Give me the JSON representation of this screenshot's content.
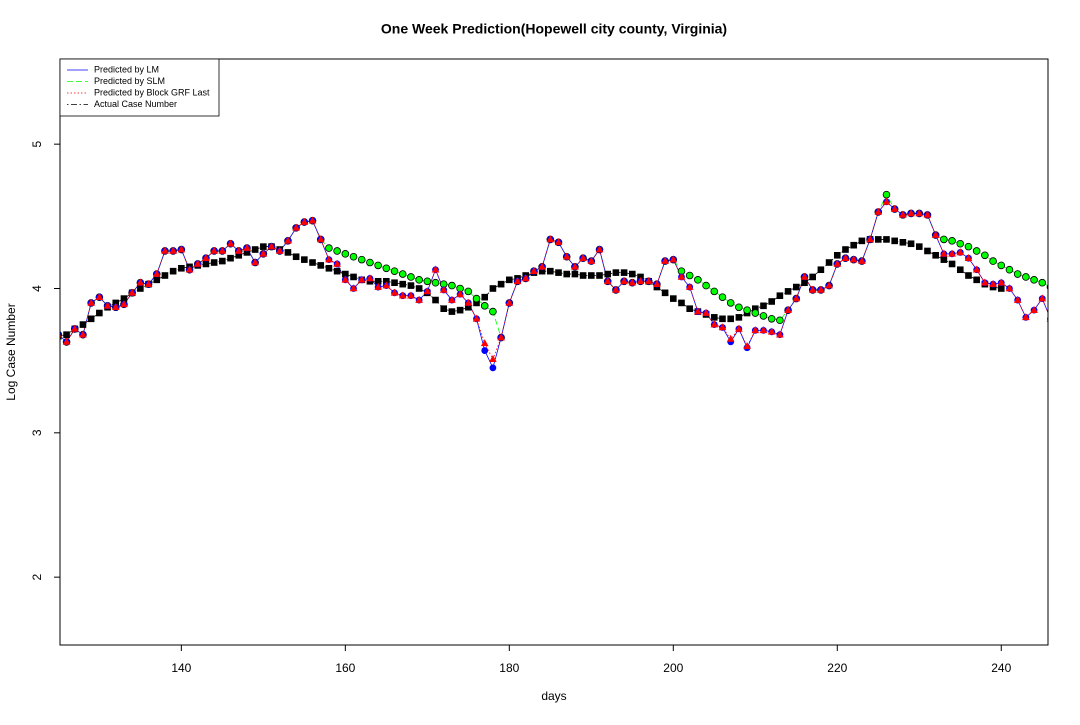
{
  "chart_data": {
    "type": "line",
    "title": "One Week Prediction(Hopewell city county, Virginia)",
    "xlabel": "days",
    "ylabel": "Log Case Number",
    "xlim": [
      125.2,
      245.7
    ],
    "ylim": [
      1.53,
      5.59
    ],
    "xticks": [
      140,
      160,
      180,
      200,
      220,
      240
    ],
    "yticks": [
      2,
      3,
      4,
      5
    ],
    "legend": "top-left",
    "x": [
      125,
      126,
      127,
      128,
      129,
      130,
      131,
      132,
      133,
      134,
      135,
      136,
      137,
      138,
      139,
      140,
      141,
      142,
      143,
      144,
      145,
      146,
      147,
      148,
      149,
      150,
      151,
      152,
      153,
      154,
      155,
      156,
      157,
      158,
      159,
      160,
      161,
      162,
      163,
      164,
      165,
      166,
      167,
      168,
      169,
      170,
      171,
      172,
      173,
      174,
      175,
      176,
      177,
      178,
      179,
      180,
      181,
      182,
      183,
      184,
      185,
      186,
      187,
      188,
      189,
      190,
      191,
      192,
      193,
      194,
      195,
      196,
      197,
      198,
      199,
      200,
      201,
      202,
      203,
      204,
      205,
      206,
      207,
      208,
      209,
      210,
      211,
      212,
      213,
      214,
      215,
      216,
      217,
      218,
      219,
      220,
      221,
      222,
      223,
      224,
      225,
      226,
      227,
      228,
      229,
      230,
      231,
      232,
      233,
      234,
      235,
      236,
      237,
      238,
      239,
      240,
      241,
      242,
      243,
      244,
      245,
      246
    ],
    "series": [
      {
        "name": "Predicted by LM",
        "color": "#0000ff",
        "line": "solid",
        "marker": "circle",
        "values": [
          3.68,
          3.63,
          3.72,
          3.68,
          3.9,
          3.94,
          3.88,
          3.87,
          3.89,
          3.97,
          4.04,
          4.03,
          4.1,
          4.26,
          4.26,
          4.27,
          4.13,
          4.17,
          4.21,
          4.26,
          4.26,
          4.31,
          4.26,
          4.28,
          4.18,
          4.24,
          4.29,
          4.26,
          4.33,
          4.42,
          4.46,
          4.47,
          4.34,
          4.2,
          4.17,
          4.06,
          4.0,
          4.06,
          4.07,
          4.01,
          4.02,
          3.97,
          3.95,
          3.95,
          3.92,
          3.98,
          4.13,
          3.99,
          3.92,
          3.96,
          3.9,
          3.79,
          3.57,
          3.45,
          3.66,
          3.9,
          4.05,
          4.07,
          4.12,
          4.15,
          4.34,
          4.32,
          4.22,
          4.15,
          4.21,
          4.19,
          4.27,
          4.05,
          3.99,
          4.05,
          4.04,
          4.05,
          4.05,
          4.03,
          4.19,
          4.2,
          4.08,
          4.01,
          3.84,
          3.83,
          3.75,
          3.73,
          3.63,
          3.72,
          3.59,
          3.71,
          3.71,
          3.7,
          3.68,
          3.85,
          3.93,
          4.08,
          3.99,
          3.99,
          4.02,
          4.17,
          4.21,
          4.2,
          4.19,
          4.34,
          4.53,
          4.6,
          4.55,
          4.51,
          4.52,
          4.52,
          4.51,
          4.37,
          4.24,
          4.24,
          4.25,
          4.21,
          4.13,
          4.04,
          4.03,
          4.04,
          4.0,
          3.92,
          3.8,
          3.85,
          3.93,
          3.79
        ]
      },
      {
        "name": "Predicted by SLM",
        "color": "#00ff00",
        "line": "dashed",
        "marker": "ring",
        "values": [
          3.68,
          3.63,
          3.72,
          3.68,
          3.9,
          3.94,
          3.88,
          3.87,
          3.89,
          3.97,
          4.04,
          4.03,
          4.1,
          4.26,
          4.26,
          4.27,
          4.13,
          4.17,
          4.21,
          4.26,
          4.26,
          4.31,
          4.26,
          4.28,
          4.18,
          4.24,
          4.29,
          4.26,
          4.33,
          4.42,
          4.46,
          4.47,
          4.34,
          4.28,
          4.26,
          4.24,
          4.22,
          4.2,
          4.18,
          4.16,
          4.14,
          4.12,
          4.1,
          4.08,
          4.06,
          4.05,
          4.04,
          4.03,
          4.02,
          4.0,
          3.98,
          3.93,
          3.88,
          3.84,
          3.66,
          3.9,
          4.05,
          4.07,
          4.12,
          4.15,
          4.34,
          4.32,
          4.22,
          4.15,
          4.21,
          4.19,
          4.27,
          4.05,
          3.99,
          4.05,
          4.04,
          4.05,
          4.05,
          4.03,
          4.19,
          4.2,
          4.12,
          4.09,
          4.06,
          4.02,
          3.98,
          3.94,
          3.9,
          3.87,
          3.85,
          3.83,
          3.81,
          3.79,
          3.78,
          3.85,
          3.93,
          4.08,
          3.99,
          3.99,
          4.02,
          4.17,
          4.21,
          4.2,
          4.19,
          4.34,
          4.53,
          4.65,
          4.55,
          4.51,
          4.52,
          4.52,
          4.51,
          4.37,
          4.34,
          4.33,
          4.31,
          4.29,
          4.26,
          4.23,
          4.19,
          4.16,
          4.13,
          4.1,
          4.08,
          4.06,
          4.04,
          4.01
        ]
      },
      {
        "name": "Predicted by Block GRF Last",
        "color": "#ff0000",
        "line": "dotted",
        "marker": "triangle",
        "values": [
          3.68,
          3.63,
          3.72,
          3.68,
          3.9,
          3.94,
          3.88,
          3.87,
          3.89,
          3.97,
          4.04,
          4.03,
          4.1,
          4.26,
          4.26,
          4.27,
          4.13,
          4.17,
          4.21,
          4.26,
          4.26,
          4.31,
          4.26,
          4.28,
          4.18,
          4.24,
          4.29,
          4.26,
          4.33,
          4.42,
          4.46,
          4.47,
          4.34,
          4.2,
          4.17,
          4.06,
          4.0,
          4.06,
          4.07,
          4.01,
          4.02,
          3.97,
          3.95,
          3.95,
          3.92,
          3.98,
          4.13,
          3.99,
          3.92,
          3.96,
          3.9,
          3.79,
          3.62,
          3.51,
          3.66,
          3.9,
          4.05,
          4.07,
          4.12,
          4.15,
          4.34,
          4.32,
          4.22,
          4.15,
          4.21,
          4.19,
          4.27,
          4.05,
          3.99,
          4.05,
          4.04,
          4.05,
          4.05,
          4.03,
          4.19,
          4.2,
          4.08,
          4.01,
          3.84,
          3.83,
          3.75,
          3.73,
          3.65,
          3.72,
          3.6,
          3.71,
          3.71,
          3.7,
          3.68,
          3.85,
          3.93,
          4.08,
          3.99,
          3.99,
          4.02,
          4.17,
          4.21,
          4.2,
          4.19,
          4.34,
          4.53,
          4.6,
          4.55,
          4.51,
          4.52,
          4.52,
          4.51,
          4.37,
          4.24,
          4.24,
          4.25,
          4.21,
          4.13,
          4.04,
          4.03,
          4.04,
          4.0,
          3.92,
          3.8,
          3.85,
          3.93,
          3.79
        ]
      },
      {
        "name": "Actual Case Number",
        "color": "#000000",
        "line": "dotdash",
        "marker": "square",
        "values": [
          3.67,
          3.68,
          3.72,
          3.75,
          3.79,
          3.83,
          3.87,
          3.9,
          3.93,
          3.97,
          4.0,
          4.03,
          4.06,
          4.09,
          4.12,
          4.14,
          4.15,
          4.16,
          4.17,
          4.18,
          4.19,
          4.21,
          4.23,
          4.25,
          4.27,
          4.29,
          4.29,
          4.27,
          4.25,
          4.22,
          4.2,
          4.18,
          4.16,
          4.14,
          4.12,
          4.1,
          4.08,
          4.06,
          4.05,
          4.05,
          4.05,
          4.04,
          4.03,
          4.02,
          4.0,
          3.97,
          3.92,
          3.86,
          3.84,
          3.85,
          3.87,
          3.9,
          3.94,
          4.0,
          4.03,
          4.06,
          4.07,
          4.09,
          4.11,
          4.12,
          4.12,
          4.11,
          4.1,
          4.1,
          4.09,
          4.09,
          4.09,
          4.1,
          4.11,
          4.11,
          4.1,
          4.08,
          4.05,
          4.01,
          3.97,
          3.93,
          3.9,
          3.86,
          3.84,
          3.82,
          3.8,
          3.79,
          3.79,
          3.8,
          3.83,
          3.86,
          3.88,
          3.91,
          3.95,
          3.98,
          4.01,
          4.04,
          4.08,
          4.13,
          4.18,
          4.23,
          4.27,
          4.3,
          4.33,
          4.34,
          4.34,
          4.34,
          4.33,
          4.32,
          4.31,
          4.29,
          4.26,
          4.23,
          4.2,
          4.17,
          4.13,
          4.09,
          4.06,
          4.03,
          4.01,
          4.0,
          null,
          null,
          null,
          null,
          null,
          null
        ]
      }
    ]
  }
}
